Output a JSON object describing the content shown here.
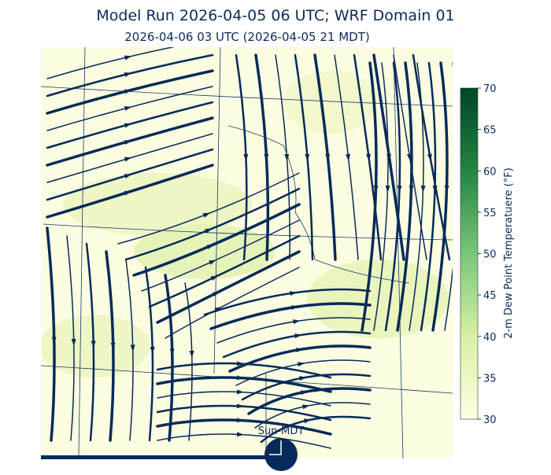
{
  "title": "Model Run 2026-04-05 06 UTC; WRF Domain 01",
  "subtitle": "2026-04-06 03 UTC  (2026-04-05 21 MDT)",
  "colorbar": {
    "label": "2-m Dew Point Temperatuere (°F)",
    "lim": [
      30,
      70
    ],
    "ticks": [
      30,
      35,
      40,
      45,
      50,
      55,
      60,
      65,
      70
    ]
  },
  "clock_label": "Sun-MDT"
}
